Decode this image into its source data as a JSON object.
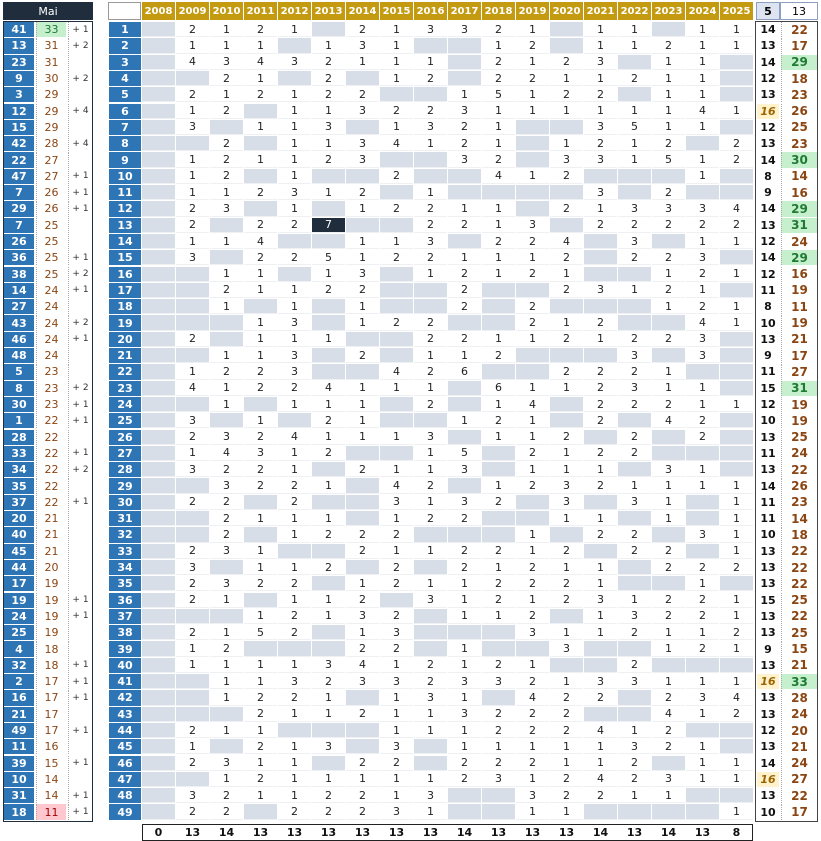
{
  "month_label": "Mai",
  "colors": {
    "blue": "#2e75b6",
    "dark": "#1f2d3d",
    "gold": "#c39a10",
    "grey": "#d8dee8",
    "green": "#c6efce",
    "green_text": "#1e7b32",
    "pink": "#ffc7ce",
    "yellow": "#fff2cc",
    "brown": "#8b4513"
  },
  "header": {
    "stats_a": "5",
    "stats_b": "13",
    "years": [
      "2008",
      "2009",
      "2010",
      "2011",
      "2012",
      "2013",
      "2014",
      "2015",
      "2016",
      "2017",
      "2018",
      "2019",
      "2020",
      "2021",
      "2022",
      "2023",
      "2024",
      "2025"
    ]
  },
  "left_list": [
    {
      "num": "41",
      "count": "33",
      "delta": "+ 1"
    },
    {
      "num": "13",
      "count": "31",
      "delta": "+ 2"
    },
    {
      "num": "23",
      "count": "31",
      "delta": ""
    },
    {
      "num": "9",
      "count": "30",
      "delta": "+ 2"
    },
    {
      "num": "3",
      "count": "29",
      "delta": ""
    },
    {
      "num": "12",
      "count": "29",
      "delta": "+ 4"
    },
    {
      "num": "15",
      "count": "29",
      "delta": ""
    },
    {
      "num": "42",
      "count": "28",
      "delta": "+ 4"
    },
    {
      "num": "22",
      "count": "27",
      "delta": ""
    },
    {
      "num": "47",
      "count": "27",
      "delta": "+ 1"
    },
    {
      "num": "7",
      "count": "26",
      "delta": "+ 1"
    },
    {
      "num": "29",
      "count": "26",
      "delta": "+ 1"
    },
    {
      "num": "7",
      "count": "25",
      "delta": ""
    },
    {
      "num": "26",
      "count": "25",
      "delta": ""
    },
    {
      "num": "36",
      "count": "25",
      "delta": "+ 1"
    },
    {
      "num": "38",
      "count": "25",
      "delta": "+ 2"
    },
    {
      "num": "14",
      "count": "24",
      "delta": "+ 1"
    },
    {
      "num": "27",
      "count": "24",
      "delta": ""
    },
    {
      "num": "43",
      "count": "24",
      "delta": "+ 2"
    },
    {
      "num": "46",
      "count": "24",
      "delta": "+ 1"
    },
    {
      "num": "48",
      "count": "24",
      "delta": ""
    },
    {
      "num": "5",
      "count": "23",
      "delta": ""
    },
    {
      "num": "8",
      "count": "23",
      "delta": "+ 2"
    },
    {
      "num": "30",
      "count": "23",
      "delta": "+ 1"
    },
    {
      "num": "1",
      "count": "22",
      "delta": "+ 1"
    },
    {
      "num": "28",
      "count": "22",
      "delta": ""
    },
    {
      "num": "33",
      "count": "22",
      "delta": "+ 1"
    },
    {
      "num": "34",
      "count": "22",
      "delta": "+ 2"
    },
    {
      "num": "35",
      "count": "22",
      "delta": ""
    },
    {
      "num": "37",
      "count": "22",
      "delta": "+ 1"
    },
    {
      "num": "20",
      "count": "21",
      "delta": ""
    },
    {
      "num": "40",
      "count": "21",
      "delta": ""
    },
    {
      "num": "45",
      "count": "21",
      "delta": ""
    },
    {
      "num": "44",
      "count": "20",
      "delta": ""
    },
    {
      "num": "17",
      "count": "19",
      "delta": ""
    },
    {
      "num": "19",
      "count": "19",
      "delta": "+ 1"
    },
    {
      "num": "24",
      "count": "19",
      "delta": "+ 1"
    },
    {
      "num": "25",
      "count": "19",
      "delta": ""
    },
    {
      "num": "4",
      "count": "18",
      "delta": ""
    },
    {
      "num": "32",
      "count": "18",
      "delta": "+ 1"
    },
    {
      "num": "2",
      "count": "17",
      "delta": "+ 1"
    },
    {
      "num": "16",
      "count": "17",
      "delta": "+ 1"
    },
    {
      "num": "21",
      "count": "17",
      "delta": ""
    },
    {
      "num": "49",
      "count": "17",
      "delta": "+ 1"
    },
    {
      "num": "11",
      "count": "16",
      "delta": ""
    },
    {
      "num": "39",
      "count": "15",
      "delta": "+ 1"
    },
    {
      "num": "10",
      "count": "14",
      "delta": ""
    },
    {
      "num": "31",
      "count": "14",
      "delta": "+ 1"
    },
    {
      "num": "18",
      "count": "11",
      "delta": "+ 1"
    }
  ],
  "grid": [
    {
      "n": "1",
      "v": [
        "",
        "2",
        "1",
        "2",
        "1",
        "",
        "2",
        "1",
        "3",
        "3",
        "2",
        "1",
        "",
        "1",
        "1",
        "",
        "1",
        "1"
      ],
      "a": "14",
      "b": "22"
    },
    {
      "n": "2",
      "v": [
        "",
        "1",
        "1",
        "1",
        "",
        "1",
        "3",
        "1",
        "",
        "",
        "1",
        "2",
        "",
        "1",
        "1",
        "2",
        "1",
        "1"
      ],
      "a": "13",
      "b": "17"
    },
    {
      "n": "3",
      "v": [
        "",
        "4",
        "3",
        "4",
        "3",
        "2",
        "1",
        "1",
        "1",
        "",
        "2",
        "1",
        "2",
        "3",
        "",
        "1",
        "1",
        ""
      ],
      "a": "14",
      "b": "29"
    },
    {
      "n": "4",
      "v": [
        "",
        "",
        "2",
        "1",
        "",
        "2",
        "",
        "1",
        "2",
        "",
        "2",
        "2",
        "1",
        "1",
        "2",
        "1",
        "1",
        ""
      ],
      "a": "12",
      "b": "18"
    },
    {
      "n": "5",
      "v": [
        "",
        "2",
        "1",
        "2",
        "1",
        "2",
        "2",
        "",
        "",
        "1",
        "5",
        "1",
        "2",
        "2",
        "",
        "1",
        "1",
        ""
      ],
      "a": "13",
      "b": "23"
    },
    {
      "n": "6",
      "v": [
        "",
        "1",
        "2",
        "",
        "1",
        "1",
        "3",
        "2",
        "2",
        "3",
        "1",
        "1",
        "1",
        "1",
        "1",
        "1",
        "4",
        "1"
      ],
      "a": "16",
      "b": "26"
    },
    {
      "n": "7",
      "v": [
        "",
        "3",
        "",
        "1",
        "1",
        "3",
        "",
        "1",
        "3",
        "2",
        "1",
        "",
        "",
        "3",
        "5",
        "1",
        "1",
        ""
      ],
      "a": "12",
      "b": "25"
    },
    {
      "n": "8",
      "v": [
        "",
        "",
        "2",
        "",
        "1",
        "1",
        "3",
        "4",
        "1",
        "2",
        "1",
        "",
        "1",
        "2",
        "1",
        "2",
        "",
        "2"
      ],
      "a": "13",
      "b": "23"
    },
    {
      "n": "9",
      "v": [
        "",
        "1",
        "2",
        "1",
        "1",
        "2",
        "3",
        "",
        "",
        "3",
        "2",
        "",
        "3",
        "3",
        "1",
        "5",
        "1",
        "2"
      ],
      "a": "14",
      "b": "30"
    },
    {
      "n": "10",
      "v": [
        "",
        "1",
        "2",
        "",
        "1",
        "",
        "",
        "2",
        "",
        "",
        "4",
        "1",
        "2",
        "",
        "",
        "",
        "1",
        ""
      ],
      "a": "8",
      "b": "14"
    },
    {
      "n": "11",
      "v": [
        "",
        "1",
        "1",
        "2",
        "3",
        "1",
        "2",
        "",
        "1",
        "",
        "",
        "",
        "",
        "3",
        "",
        "2",
        "",
        ""
      ],
      "a": "9",
      "b": "16"
    },
    {
      "n": "12",
      "v": [
        "",
        "2",
        "3",
        "",
        "1",
        "",
        "1",
        "2",
        "2",
        "1",
        "1",
        "",
        "2",
        "1",
        "3",
        "3",
        "3",
        "4"
      ],
      "a": "14",
      "b": "29"
    },
    {
      "n": "13",
      "v": [
        "",
        "2",
        "",
        "2",
        "2",
        "7",
        "",
        "",
        "2",
        "2",
        "1",
        "3",
        "",
        "2",
        "2",
        "2",
        "2",
        "2"
      ],
      "a": "13",
      "b": "31"
    },
    {
      "n": "14",
      "v": [
        "",
        "1",
        "1",
        "4",
        "",
        "",
        "1",
        "1",
        "3",
        "",
        "2",
        "2",
        "4",
        "",
        "3",
        "",
        "1",
        "1"
      ],
      "a": "12",
      "b": "24"
    },
    {
      "n": "15",
      "v": [
        "",
        "3",
        "",
        "2",
        "2",
        "5",
        "1",
        "2",
        "2",
        "1",
        "1",
        "1",
        "2",
        "",
        "2",
        "2",
        "3",
        ""
      ],
      "a": "14",
      "b": "29"
    },
    {
      "n": "16",
      "v": [
        "",
        "",
        "1",
        "1",
        "",
        "1",
        "3",
        "",
        "1",
        "2",
        "1",
        "2",
        "1",
        "",
        "",
        "1",
        "2",
        "1"
      ],
      "a": "12",
      "b": "16"
    },
    {
      "n": "17",
      "v": [
        "",
        "",
        "2",
        "1",
        "1",
        "2",
        "2",
        "",
        "",
        "2",
        "",
        "",
        "2",
        "3",
        "1",
        "2",
        "1",
        ""
      ],
      "a": "11",
      "b": "19"
    },
    {
      "n": "18",
      "v": [
        "",
        "",
        "1",
        "",
        "1",
        "",
        "1",
        "",
        "",
        "2",
        "",
        "2",
        "",
        "",
        "",
        "1",
        "2",
        "1"
      ],
      "a": "8",
      "b": "11"
    },
    {
      "n": "19",
      "v": [
        "",
        "",
        "",
        "1",
        "3",
        "",
        "1",
        "2",
        "2",
        "",
        "",
        "2",
        "1",
        "2",
        "",
        "",
        "4",
        "1"
      ],
      "a": "10",
      "b": "19"
    },
    {
      "n": "20",
      "v": [
        "",
        "2",
        "",
        "1",
        "1",
        "1",
        "",
        "",
        "2",
        "2",
        "1",
        "1",
        "2",
        "1",
        "2",
        "2",
        "3",
        ""
      ],
      "a": "13",
      "b": "21"
    },
    {
      "n": "21",
      "v": [
        "",
        "",
        "1",
        "1",
        "3",
        "",
        "2",
        "",
        "1",
        "1",
        "2",
        "",
        "",
        "",
        "3",
        "",
        "3",
        ""
      ],
      "a": "9",
      "b": "17"
    },
    {
      "n": "22",
      "v": [
        "",
        "1",
        "2",
        "2",
        "3",
        "",
        "",
        "4",
        "2",
        "6",
        "",
        "",
        "2",
        "2",
        "2",
        "1",
        "",
        ""
      ],
      "a": "11",
      "b": "27"
    },
    {
      "n": "23",
      "v": [
        "",
        "4",
        "1",
        "2",
        "2",
        "4",
        "1",
        "1",
        "1",
        "",
        "6",
        "1",
        "1",
        "2",
        "3",
        "1",
        "1",
        ""
      ],
      "a": "15",
      "b": "31"
    },
    {
      "n": "24",
      "v": [
        "",
        "",
        "1",
        "",
        "1",
        "1",
        "1",
        "",
        "2",
        "",
        "1",
        "4",
        "",
        "2",
        "2",
        "2",
        "1",
        "1"
      ],
      "a": "12",
      "b": "19"
    },
    {
      "n": "25",
      "v": [
        "",
        "3",
        "",
        "1",
        "",
        "2",
        "1",
        "",
        "",
        "1",
        "2",
        "1",
        "",
        "2",
        "",
        "4",
        "2",
        ""
      ],
      "a": "10",
      "b": "19"
    },
    {
      "n": "26",
      "v": [
        "",
        "2",
        "3",
        "2",
        "4",
        "1",
        "1",
        "1",
        "3",
        "",
        "1",
        "1",
        "2",
        "",
        "2",
        "",
        "2",
        ""
      ],
      "a": "13",
      "b": "25"
    },
    {
      "n": "27",
      "v": [
        "",
        "1",
        "4",
        "3",
        "1",
        "2",
        "",
        "",
        "1",
        "5",
        "",
        "2",
        "1",
        "2",
        "2",
        "",
        "",
        ""
      ],
      "a": "11",
      "b": "24"
    },
    {
      "n": "28",
      "v": [
        "",
        "3",
        "2",
        "2",
        "1",
        "",
        "2",
        "1",
        "1",
        "3",
        "",
        "1",
        "1",
        "1",
        "",
        "3",
        "1",
        ""
      ],
      "a": "13",
      "b": "22"
    },
    {
      "n": "29",
      "v": [
        "",
        "",
        "3",
        "2",
        "2",
        "1",
        "",
        "4",
        "2",
        "",
        "1",
        "2",
        "3",
        "2",
        "1",
        "1",
        "1",
        "1"
      ],
      "a": "14",
      "b": "26"
    },
    {
      "n": "30",
      "v": [
        "",
        "2",
        "2",
        "",
        "2",
        "",
        "",
        "3",
        "1",
        "3",
        "2",
        "",
        "3",
        "",
        "3",
        "1",
        "",
        "1"
      ],
      "a": "11",
      "b": "23"
    },
    {
      "n": "31",
      "v": [
        "",
        "",
        "2",
        "1",
        "1",
        "1",
        "",
        "1",
        "2",
        "2",
        "",
        "",
        "1",
        "1",
        "",
        "1",
        "",
        "1"
      ],
      "a": "11",
      "b": "14"
    },
    {
      "n": "32",
      "v": [
        "",
        "",
        "2",
        "",
        "1",
        "2",
        "2",
        "2",
        "",
        "",
        "",
        "1",
        "",
        "2",
        "2",
        "",
        "3",
        "1"
      ],
      "a": "10",
      "b": "18"
    },
    {
      "n": "33",
      "v": [
        "",
        "2",
        "3",
        "1",
        "",
        "",
        "2",
        "1",
        "1",
        "2",
        "2",
        "1",
        "2",
        "",
        "2",
        "2",
        "",
        "1"
      ],
      "a": "13",
      "b": "22"
    },
    {
      "n": "34",
      "v": [
        "",
        "3",
        "",
        "1",
        "1",
        "2",
        "",
        "2",
        "",
        "2",
        "1",
        "2",
        "1",
        "1",
        "",
        "2",
        "2",
        "2"
      ],
      "a": "13",
      "b": "22"
    },
    {
      "n": "35",
      "v": [
        "",
        "2",
        "3",
        "2",
        "2",
        "",
        "1",
        "2",
        "1",
        "1",
        "2",
        "2",
        "2",
        "1",
        "",
        "",
        "1",
        ""
      ],
      "a": "13",
      "b": "22"
    },
    {
      "n": "36",
      "v": [
        "",
        "2",
        "1",
        "",
        "1",
        "1",
        "2",
        "",
        "3",
        "1",
        "2",
        "1",
        "2",
        "3",
        "1",
        "2",
        "2",
        "1"
      ],
      "a": "15",
      "b": "25"
    },
    {
      "n": "37",
      "v": [
        "",
        "",
        "",
        "1",
        "2",
        "1",
        "3",
        "2",
        "",
        "1",
        "1",
        "2",
        "",
        "1",
        "3",
        "2",
        "2",
        "1"
      ],
      "a": "13",
      "b": "22"
    },
    {
      "n": "38",
      "v": [
        "",
        "2",
        "1",
        "5",
        "2",
        "",
        "1",
        "3",
        "",
        "",
        "",
        "3",
        "1",
        "1",
        "2",
        "1",
        "1",
        "2"
      ],
      "a": "13",
      "b": "25"
    },
    {
      "n": "39",
      "v": [
        "",
        "1",
        "2",
        "",
        "",
        "",
        "2",
        "2",
        "",
        "1",
        "",
        "",
        "3",
        "",
        "",
        "1",
        "2",
        "1"
      ],
      "a": "9",
      "b": "15"
    },
    {
      "n": "40",
      "v": [
        "",
        "1",
        "1",
        "1",
        "1",
        "3",
        "4",
        "1",
        "2",
        "1",
        "2",
        "1",
        "",
        "",
        "2",
        "",
        "",
        ""
      ],
      "a": "13",
      "b": "21"
    },
    {
      "n": "41",
      "v": [
        "",
        "",
        "1",
        "1",
        "3",
        "2",
        "3",
        "3",
        "2",
        "3",
        "3",
        "2",
        "1",
        "3",
        "3",
        "1",
        "1",
        "1"
      ],
      "a": "16",
      "b": "33"
    },
    {
      "n": "42",
      "v": [
        "",
        "",
        "1",
        "2",
        "2",
        "1",
        "",
        "1",
        "3",
        "1",
        "",
        "4",
        "2",
        "2",
        "",
        "2",
        "3",
        "4"
      ],
      "a": "13",
      "b": "28"
    },
    {
      "n": "43",
      "v": [
        "",
        "",
        "",
        "2",
        "1",
        "1",
        "2",
        "1",
        "1",
        "3",
        "2",
        "2",
        "2",
        "",
        "",
        "4",
        "1",
        "2"
      ],
      "a": "13",
      "b": "24"
    },
    {
      "n": "44",
      "v": [
        "",
        "2",
        "1",
        "1",
        "",
        "",
        "",
        "1",
        "1",
        "1",
        "2",
        "2",
        "2",
        "4",
        "1",
        "2",
        "",
        ""
      ],
      "a": "12",
      "b": "20"
    },
    {
      "n": "45",
      "v": [
        "",
        "1",
        "",
        "2",
        "1",
        "3",
        "",
        "3",
        "",
        "1",
        "1",
        "1",
        "1",
        "1",
        "3",
        "2",
        "1",
        ""
      ],
      "a": "13",
      "b": "21"
    },
    {
      "n": "46",
      "v": [
        "",
        "2",
        "3",
        "1",
        "1",
        "",
        "2",
        "2",
        "",
        "2",
        "2",
        "2",
        "1",
        "1",
        "2",
        "",
        "1",
        "1"
      ],
      "a": "14",
      "b": "24"
    },
    {
      "n": "47",
      "v": [
        "",
        "",
        "1",
        "2",
        "1",
        "1",
        "1",
        "1",
        "1",
        "2",
        "3",
        "1",
        "2",
        "4",
        "2",
        "3",
        "1",
        "1"
      ],
      "a": "16",
      "b": "27"
    },
    {
      "n": "48",
      "v": [
        "",
        "3",
        "2",
        "1",
        "1",
        "2",
        "2",
        "1",
        "3",
        "",
        "",
        "3",
        "2",
        "2",
        "1",
        "1",
        "",
        ""
      ],
      "a": "13",
      "b": "22"
    },
    {
      "n": "49",
      "v": [
        "",
        "2",
        "2",
        "",
        "2",
        "2",
        "2",
        "3",
        "1",
        "",
        "",
        "1",
        "1",
        "",
        "",
        "",
        "",
        "1"
      ],
      "a": "10",
      "b": "17"
    }
  ],
  "footer": [
    "0",
    "13",
    "14",
    "13",
    "13",
    "13",
    "13",
    "13",
    "13",
    "14",
    "13",
    "13",
    "13",
    "14",
    "13",
    "14",
    "13",
    "8"
  ],
  "highlights": {
    "dark_cell": {
      "row": 13,
      "col": 5
    },
    "green_b": [
      "3",
      "9",
      "12",
      "13",
      "15",
      "23",
      "41"
    ],
    "yellow_a": [
      "6",
      "41",
      "47"
    ]
  }
}
